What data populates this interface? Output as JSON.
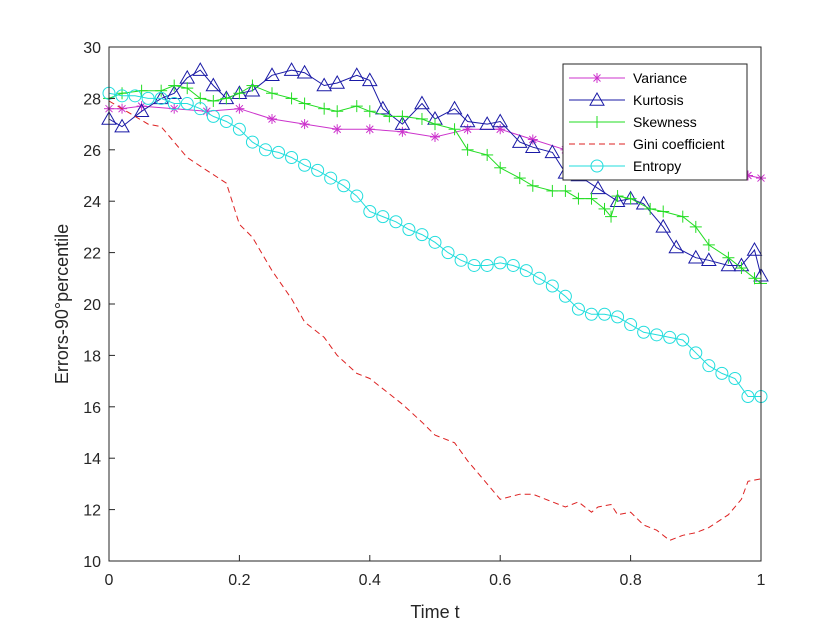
{
  "chart_data": {
    "type": "line",
    "title": "",
    "xlabel": "Time t",
    "ylabel": "Errors-90°percentile",
    "xlim": [
      0,
      1
    ],
    "ylim": [
      10,
      30
    ],
    "xticks": [
      0,
      0.2,
      0.4,
      0.6,
      0.8,
      1
    ],
    "yticks": [
      10,
      12,
      14,
      16,
      18,
      20,
      22,
      24,
      26,
      28,
      30
    ],
    "xtick_labels": [
      "0",
      "0.2",
      "0.4",
      "0.6",
      "0.8",
      "1"
    ],
    "ytick_labels": [
      "10",
      "12",
      "14",
      "16",
      "18",
      "20",
      "22",
      "24",
      "26",
      "28",
      "30"
    ],
    "grid": false,
    "legend_position": "top-right",
    "series": [
      {
        "name": "Variance",
        "color": "#cc33cc",
        "marker": "asterisk",
        "line": "solid",
        "x": [
          0,
          0.02,
          0.05,
          0.1,
          0.15,
          0.2,
          0.25,
          0.3,
          0.35,
          0.4,
          0.45,
          0.5,
          0.55,
          0.6,
          0.65,
          0.7,
          0.75,
          0.8,
          0.85,
          0.9,
          0.95,
          0.98,
          1.0
        ],
        "y": [
          27.6,
          27.6,
          27.7,
          27.6,
          27.5,
          27.6,
          27.2,
          27.0,
          26.8,
          26.8,
          26.7,
          26.5,
          26.8,
          26.8,
          26.4,
          26.0,
          25.4,
          25.2,
          25.2,
          25.0,
          25.0,
          25.0,
          24.9
        ]
      },
      {
        "name": "Kurtosis",
        "color": "#1a1aa6",
        "marker": "triangle",
        "line": "solid",
        "x": [
          0,
          0.02,
          0.05,
          0.08,
          0.1,
          0.12,
          0.14,
          0.16,
          0.18,
          0.2,
          0.22,
          0.25,
          0.28,
          0.3,
          0.33,
          0.35,
          0.38,
          0.4,
          0.42,
          0.45,
          0.48,
          0.5,
          0.53,
          0.55,
          0.58,
          0.6,
          0.63,
          0.65,
          0.68,
          0.7,
          0.72,
          0.75,
          0.78,
          0.8,
          0.82,
          0.85,
          0.87,
          0.9,
          0.92,
          0.95,
          0.97,
          0.99,
          1.0
        ],
        "y": [
          27.2,
          26.9,
          27.5,
          28.0,
          28.2,
          28.8,
          29.1,
          28.5,
          28.0,
          28.2,
          28.3,
          28.9,
          29.1,
          29.0,
          28.5,
          28.6,
          28.9,
          28.7,
          27.6,
          27.0,
          27.8,
          27.2,
          27.6,
          27.1,
          27.0,
          27.1,
          26.3,
          26.1,
          25.9,
          25.1,
          25.0,
          24.5,
          24.0,
          24.1,
          23.9,
          23.0,
          22.2,
          21.8,
          21.7,
          21.5,
          21.5,
          22.1,
          21.1
        ]
      },
      {
        "name": "Skewness",
        "color": "#22dd22",
        "marker": "plus",
        "line": "solid",
        "x": [
          0,
          0.02,
          0.05,
          0.08,
          0.1,
          0.12,
          0.14,
          0.16,
          0.18,
          0.2,
          0.22,
          0.25,
          0.28,
          0.3,
          0.33,
          0.35,
          0.38,
          0.4,
          0.43,
          0.45,
          0.48,
          0.5,
          0.53,
          0.55,
          0.58,
          0.6,
          0.63,
          0.65,
          0.68,
          0.7,
          0.72,
          0.74,
          0.76,
          0.77,
          0.78,
          0.8,
          0.83,
          0.85,
          0.88,
          0.9,
          0.92,
          0.95,
          0.97,
          0.99,
          1.0
        ],
        "y": [
          28.0,
          28.2,
          28.3,
          28.3,
          28.5,
          28.4,
          28.0,
          27.9,
          28.0,
          28.2,
          28.5,
          28.2,
          28.0,
          27.8,
          27.6,
          27.5,
          27.7,
          27.5,
          27.3,
          27.3,
          27.2,
          27.0,
          26.8,
          26.0,
          25.8,
          25.3,
          24.9,
          24.6,
          24.4,
          24.4,
          24.1,
          24.1,
          23.7,
          23.4,
          24.2,
          24.1,
          23.7,
          23.6,
          23.4,
          23.0,
          22.3,
          21.8,
          21.4,
          21.0,
          20.8
        ]
      },
      {
        "name": "Gini coefficient",
        "color": "#dd2222",
        "marker": "none",
        "line": "dashed",
        "x": [
          0,
          0.02,
          0.04,
          0.06,
          0.08,
          0.1,
          0.12,
          0.15,
          0.18,
          0.2,
          0.22,
          0.25,
          0.28,
          0.3,
          0.33,
          0.35,
          0.38,
          0.4,
          0.43,
          0.45,
          0.48,
          0.5,
          0.53,
          0.55,
          0.58,
          0.6,
          0.63,
          0.65,
          0.68,
          0.7,
          0.72,
          0.74,
          0.75,
          0.77,
          0.78,
          0.8,
          0.82,
          0.84,
          0.86,
          0.88,
          0.9,
          0.92,
          0.95,
          0.97,
          0.98,
          1.0
        ],
        "y": [
          27.9,
          27.6,
          27.3,
          27.0,
          26.9,
          26.3,
          25.7,
          25.2,
          24.7,
          23.1,
          22.6,
          21.3,
          20.2,
          19.3,
          18.7,
          18.0,
          17.3,
          17.1,
          16.5,
          16.1,
          15.4,
          14.9,
          14.6,
          13.9,
          13.0,
          12.4,
          12.6,
          12.6,
          12.3,
          12.1,
          12.3,
          11.9,
          12.1,
          12.2,
          11.8,
          11.9,
          11.4,
          11.2,
          10.8,
          11.0,
          11.1,
          11.3,
          11.8,
          12.4,
          13.1,
          13.2
        ]
      },
      {
        "name": "Entropy",
        "color": "#22dddd",
        "marker": "circle",
        "line": "solid",
        "x": [
          0,
          0.02,
          0.04,
          0.06,
          0.08,
          0.1,
          0.12,
          0.14,
          0.16,
          0.18,
          0.2,
          0.22,
          0.24,
          0.26,
          0.28,
          0.3,
          0.32,
          0.34,
          0.36,
          0.38,
          0.4,
          0.42,
          0.44,
          0.46,
          0.48,
          0.5,
          0.52,
          0.54,
          0.56,
          0.58,
          0.6,
          0.62,
          0.64,
          0.66,
          0.68,
          0.7,
          0.72,
          0.74,
          0.76,
          0.78,
          0.8,
          0.82,
          0.84,
          0.86,
          0.88,
          0.9,
          0.92,
          0.94,
          0.96,
          0.98,
          1.0
        ],
        "y": [
          28.2,
          28.1,
          28.1,
          28.0,
          28.0,
          27.8,
          27.8,
          27.6,
          27.3,
          27.1,
          26.8,
          26.3,
          26.0,
          25.9,
          25.7,
          25.4,
          25.2,
          24.9,
          24.6,
          24.2,
          23.6,
          23.4,
          23.2,
          22.9,
          22.7,
          22.4,
          22.0,
          21.7,
          21.5,
          21.5,
          21.6,
          21.5,
          21.3,
          21.0,
          20.7,
          20.3,
          19.8,
          19.6,
          19.6,
          19.5,
          19.2,
          18.9,
          18.8,
          18.7,
          18.6,
          18.1,
          17.6,
          17.3,
          17.1,
          16.4,
          16.4
        ]
      }
    ]
  }
}
